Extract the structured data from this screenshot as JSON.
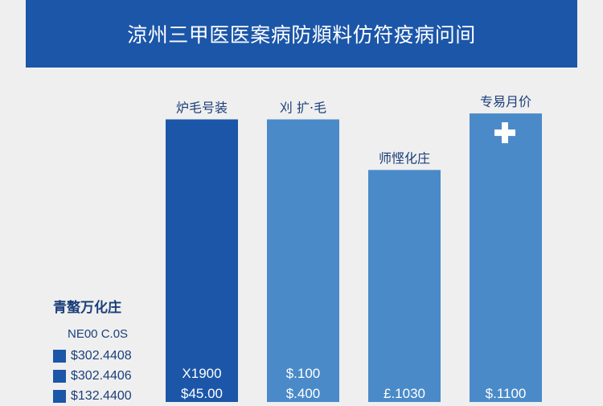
{
  "header": {
    "title": "涼州三甲医医案病防頫料仿符疫病问间"
  },
  "chart_data": {
    "type": "bar",
    "categories": [
      "炉毛号装",
      "刈 扩·毛",
      "师悭化庄",
      "专易月价"
    ],
    "values": [
      1900,
      1900,
      1560,
      1940
    ],
    "ylim": [
      0,
      2000
    ],
    "value_labels": [
      [
        "X1900",
        "$45.00"
      ],
      [
        "$.100",
        "$.400"
      ],
      [
        "£.1030"
      ],
      [
        "$.1100"
      ]
    ],
    "legend": {
      "title": "青螯万化庄",
      "subtitle": "NE00 C.0S",
      "entries": [
        "$302.4408",
        "$302.4406",
        "$132.4400"
      ]
    },
    "colors": [
      "#1b56a8",
      "#4a8ac8",
      "#4a8ac8",
      "#4a8ac8"
    ],
    "annotation_icon": "plus-icon"
  }
}
